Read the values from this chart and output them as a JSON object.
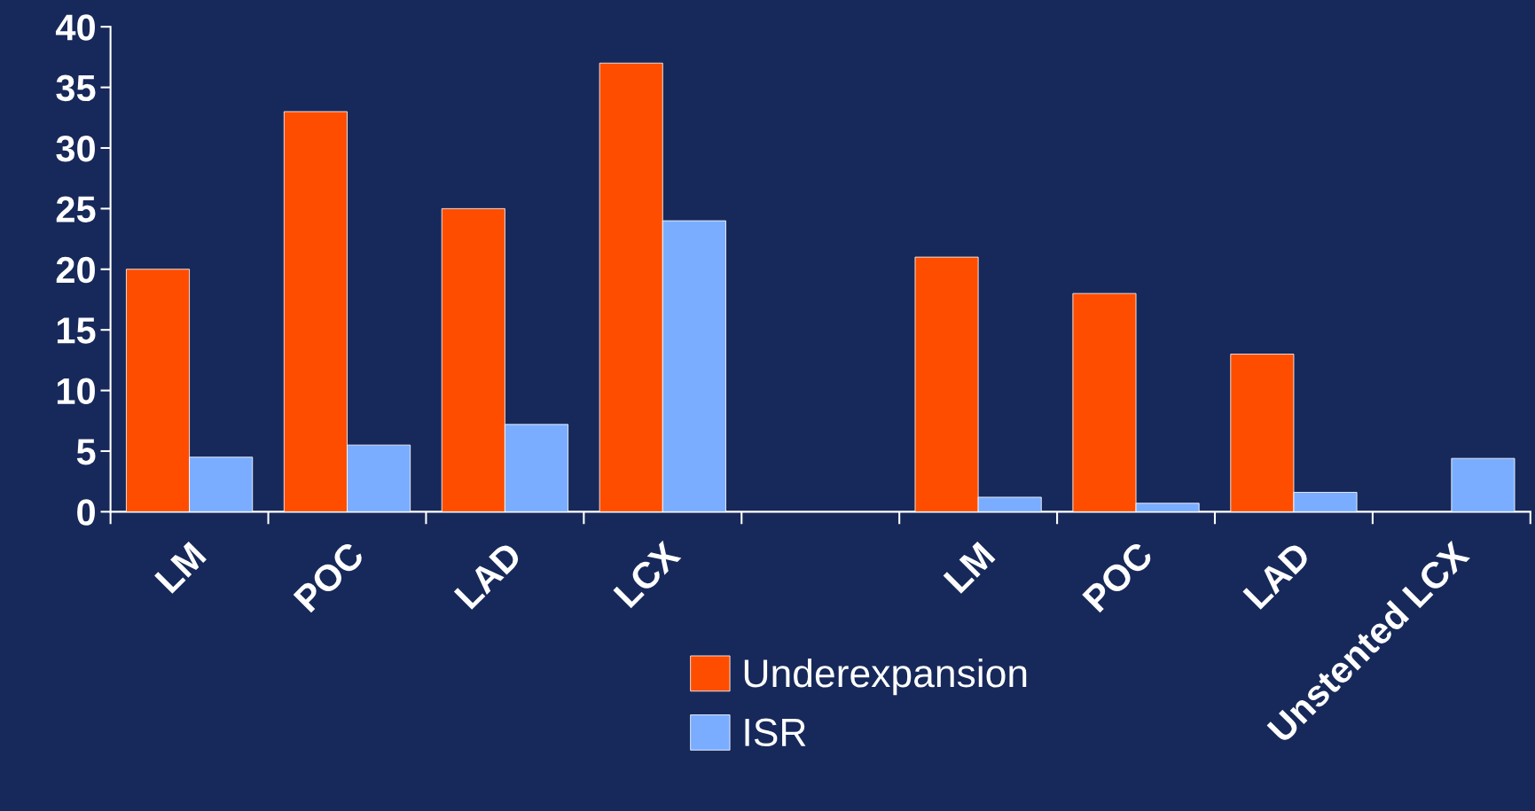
{
  "chart_data": {
    "type": "bar",
    "categories": [
      "LM",
      "POC",
      "LAD",
      "LCX",
      null,
      "LM",
      "POC",
      "LAD",
      "Unstented LCX"
    ],
    "series": [
      {
        "name": "Underexpansion",
        "color": "#ff4d00",
        "values": [
          20,
          33,
          25,
          37,
          null,
          21,
          18,
          13,
          null
        ]
      },
      {
        "name": "ISR",
        "color": "#7aadff",
        "values": [
          4.5,
          5.5,
          7.2,
          24,
          null,
          1.2,
          0.7,
          1.6,
          4.4
        ]
      }
    ],
    "ylim": [
      0,
      40
    ],
    "yticks": [
      0,
      5,
      10,
      15,
      20,
      25,
      30,
      35,
      40
    ],
    "grid": false,
    "legend": "bottom"
  }
}
